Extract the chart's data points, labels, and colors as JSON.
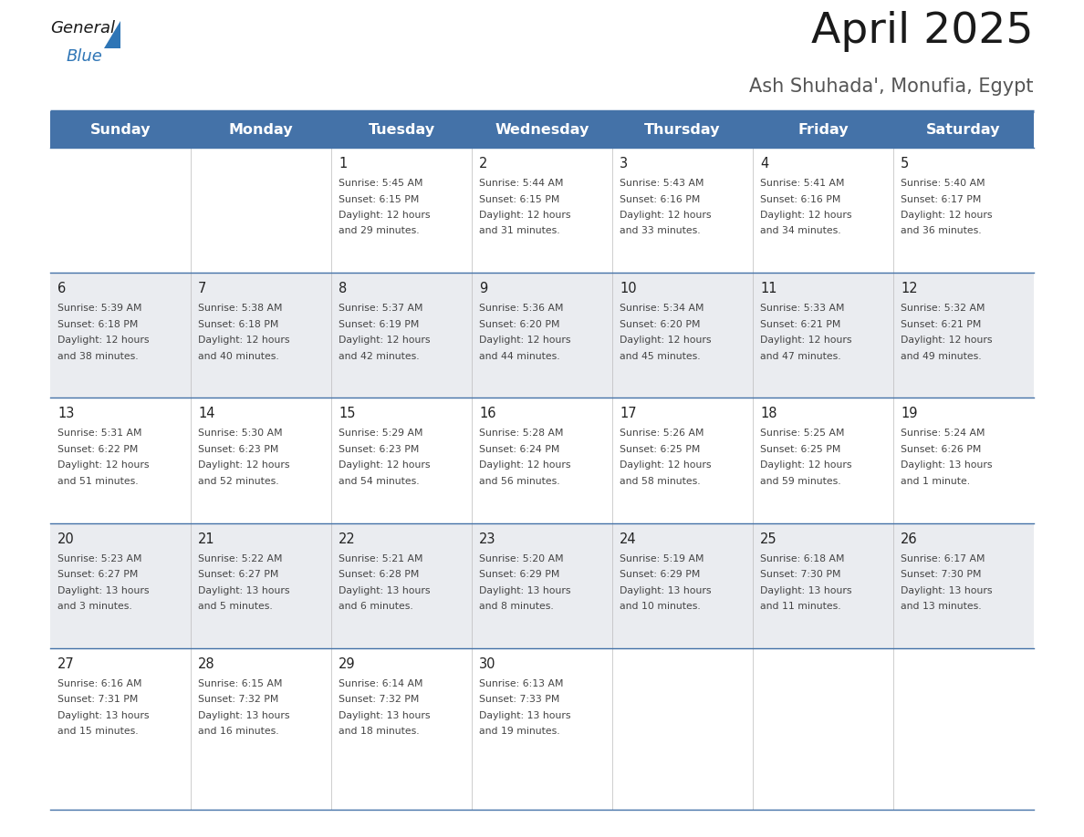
{
  "title": "April 2025",
  "subtitle": "Ash Shuhada', Monufia, Egypt",
  "days_of_week": [
    "Sunday",
    "Monday",
    "Tuesday",
    "Wednesday",
    "Thursday",
    "Friday",
    "Saturday"
  ],
  "header_bg": "#4472A8",
  "header_text": "#FFFFFF",
  "row_bg_light": "#EAECF0",
  "row_bg_white": "#FFFFFF",
  "cell_text_color": "#444444",
  "day_number_color": "#222222",
  "border_color": "#4472A8",
  "title_color": "#1a1a1a",
  "subtitle_color": "#555555",
  "logo_general_color": "#1a1a1a",
  "logo_blue_color": "#2E75B6",
  "weeks": [
    {
      "bg": "#FFFFFF",
      "days": [
        {
          "date": "",
          "sunrise": "",
          "sunset": "",
          "daylight": ""
        },
        {
          "date": "",
          "sunrise": "",
          "sunset": "",
          "daylight": ""
        },
        {
          "date": "1",
          "sunrise": "5:45 AM",
          "sunset": "6:15 PM",
          "daylight": "12 hours and 29 minutes."
        },
        {
          "date": "2",
          "sunrise": "5:44 AM",
          "sunset": "6:15 PM",
          "daylight": "12 hours and 31 minutes."
        },
        {
          "date": "3",
          "sunrise": "5:43 AM",
          "sunset": "6:16 PM",
          "daylight": "12 hours and 33 minutes."
        },
        {
          "date": "4",
          "sunrise": "5:41 AM",
          "sunset": "6:16 PM",
          "daylight": "12 hours and 34 minutes."
        },
        {
          "date": "5",
          "sunrise": "5:40 AM",
          "sunset": "6:17 PM",
          "daylight": "12 hours and 36 minutes."
        }
      ]
    },
    {
      "bg": "#EAECF0",
      "days": [
        {
          "date": "6",
          "sunrise": "5:39 AM",
          "sunset": "6:18 PM",
          "daylight": "12 hours and 38 minutes."
        },
        {
          "date": "7",
          "sunrise": "5:38 AM",
          "sunset": "6:18 PM",
          "daylight": "12 hours and 40 minutes."
        },
        {
          "date": "8",
          "sunrise": "5:37 AM",
          "sunset": "6:19 PM",
          "daylight": "12 hours and 42 minutes."
        },
        {
          "date": "9",
          "sunrise": "5:36 AM",
          "sunset": "6:20 PM",
          "daylight": "12 hours and 44 minutes."
        },
        {
          "date": "10",
          "sunrise": "5:34 AM",
          "sunset": "6:20 PM",
          "daylight": "12 hours and 45 minutes."
        },
        {
          "date": "11",
          "sunrise": "5:33 AM",
          "sunset": "6:21 PM",
          "daylight": "12 hours and 47 minutes."
        },
        {
          "date": "12",
          "sunrise": "5:32 AM",
          "sunset": "6:21 PM",
          "daylight": "12 hours and 49 minutes."
        }
      ]
    },
    {
      "bg": "#FFFFFF",
      "days": [
        {
          "date": "13",
          "sunrise": "5:31 AM",
          "sunset": "6:22 PM",
          "daylight": "12 hours and 51 minutes."
        },
        {
          "date": "14",
          "sunrise": "5:30 AM",
          "sunset": "6:23 PM",
          "daylight": "12 hours and 52 minutes."
        },
        {
          "date": "15",
          "sunrise": "5:29 AM",
          "sunset": "6:23 PM",
          "daylight": "12 hours and 54 minutes."
        },
        {
          "date": "16",
          "sunrise": "5:28 AM",
          "sunset": "6:24 PM",
          "daylight": "12 hours and 56 minutes."
        },
        {
          "date": "17",
          "sunrise": "5:26 AM",
          "sunset": "6:25 PM",
          "daylight": "12 hours and 58 minutes."
        },
        {
          "date": "18",
          "sunrise": "5:25 AM",
          "sunset": "6:25 PM",
          "daylight": "12 hours and 59 minutes."
        },
        {
          "date": "19",
          "sunrise": "5:24 AM",
          "sunset": "6:26 PM",
          "daylight": "13 hours and 1 minute."
        }
      ]
    },
    {
      "bg": "#EAECF0",
      "days": [
        {
          "date": "20",
          "sunrise": "5:23 AM",
          "sunset": "6:27 PM",
          "daylight": "13 hours and 3 minutes."
        },
        {
          "date": "21",
          "sunrise": "5:22 AM",
          "sunset": "6:27 PM",
          "daylight": "13 hours and 5 minutes."
        },
        {
          "date": "22",
          "sunrise": "5:21 AM",
          "sunset": "6:28 PM",
          "daylight": "13 hours and 6 minutes."
        },
        {
          "date": "23",
          "sunrise": "5:20 AM",
          "sunset": "6:29 PM",
          "daylight": "13 hours and 8 minutes."
        },
        {
          "date": "24",
          "sunrise": "5:19 AM",
          "sunset": "6:29 PM",
          "daylight": "13 hours and 10 minutes."
        },
        {
          "date": "25",
          "sunrise": "6:18 AM",
          "sunset": "7:30 PM",
          "daylight": "13 hours and 11 minutes."
        },
        {
          "date": "26",
          "sunrise": "6:17 AM",
          "sunset": "7:30 PM",
          "daylight": "13 hours and 13 minutes."
        }
      ]
    },
    {
      "bg": "#FFFFFF",
      "days": [
        {
          "date": "27",
          "sunrise": "6:16 AM",
          "sunset": "7:31 PM",
          "daylight": "13 hours and 15 minutes."
        },
        {
          "date": "28",
          "sunrise": "6:15 AM",
          "sunset": "7:32 PM",
          "daylight": "13 hours and 16 minutes."
        },
        {
          "date": "29",
          "sunrise": "6:14 AM",
          "sunset": "7:32 PM",
          "daylight": "13 hours and 18 minutes."
        },
        {
          "date": "30",
          "sunrise": "6:13 AM",
          "sunset": "7:33 PM",
          "daylight": "13 hours and 19 minutes."
        },
        {
          "date": "",
          "sunrise": "",
          "sunset": "",
          "daylight": ""
        },
        {
          "date": "",
          "sunrise": "",
          "sunset": "",
          "daylight": ""
        },
        {
          "date": "",
          "sunrise": "",
          "sunset": "",
          "daylight": ""
        }
      ]
    }
  ]
}
